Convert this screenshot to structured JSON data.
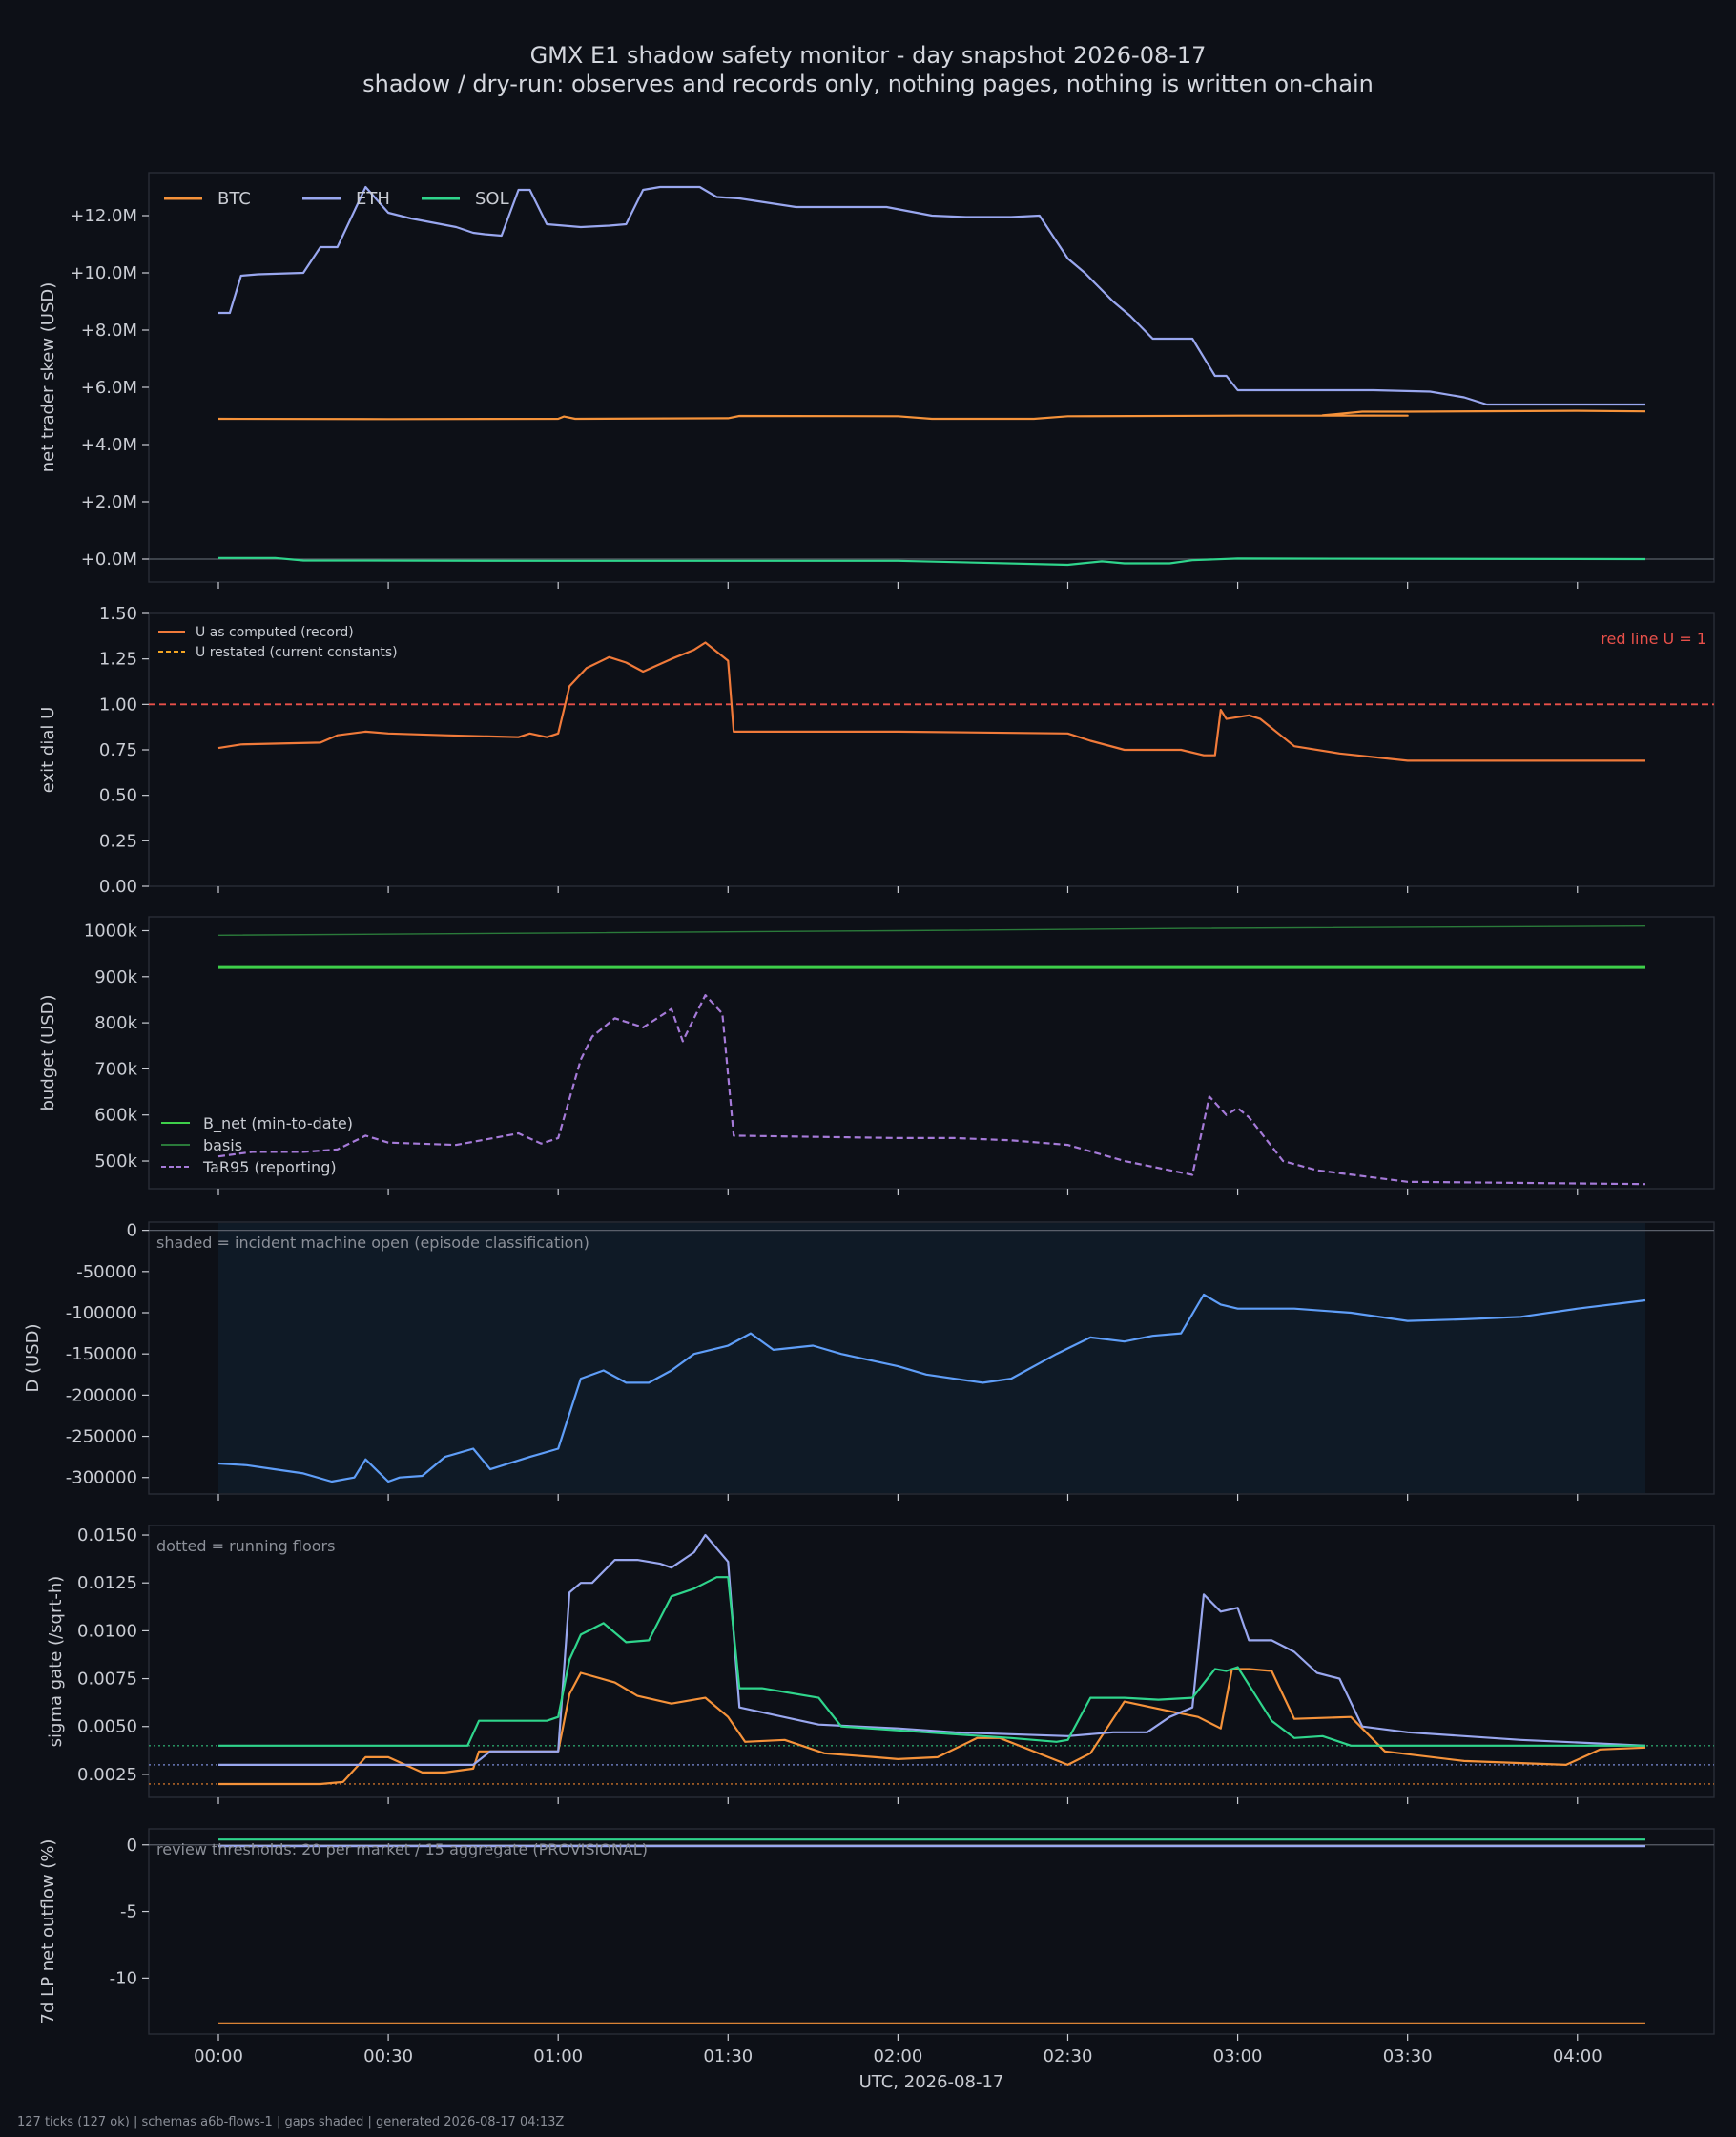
{
  "header": {
    "title": "GMX E1 shadow safety monitor - day snapshot 2026-08-17",
    "subtitle": "shadow / dry-run: observes and records only, nothing pages, nothing is written on-chain"
  },
  "footer": "127 ticks (127 ok) | schemas a6b-flows-1 | gaps shaded | generated 2026-08-17 04:13Z",
  "colors": {
    "background": "#0d1017",
    "btc": "#f5923a",
    "eth": "#99a7ef",
    "sol": "#2fd58c",
    "u_record": "#f07a3a",
    "red_line": "#e8504a",
    "b_net": "#3ecf4a",
    "basis": "#2a7a3a",
    "tar95": "#a57ad8",
    "d_line": "#5f9ef8",
    "shade": "#0f1a26"
  },
  "chart_data": [
    {
      "type": "line",
      "ylabel": "net trader skew (USD)",
      "ylim": [
        -800000,
        13500000
      ],
      "yticks": [
        "+0.0M",
        "+2.0M",
        "+4.0M",
        "+6.0M",
        "+8.0M",
        "+10.0M",
        "+12.0M"
      ],
      "legend": {
        "placement": "top-left",
        "orientation": "horizontal"
      },
      "series": [
        {
          "name": "BTC",
          "color": "#f5923a",
          "x": [
            "00:00",
            "00:30",
            "01:00",
            "01:01",
            "01:03",
            "01:30",
            "01:32",
            "02:00",
            "02:06",
            "02:24",
            "02:30",
            "03:00",
            "03:30",
            "03:15",
            "03:22",
            "03:30",
            "04:00",
            "04:12"
          ],
          "values": [
            4900000,
            4890000,
            4900000,
            4980000,
            4900000,
            4920000,
            5000000,
            4990000,
            4900000,
            4900000,
            4990000,
            5010000,
            5010000,
            5020000,
            5150000,
            5150000,
            5180000,
            5160000
          ]
        },
        {
          "name": "ETH",
          "color": "#99a7ef",
          "x": [
            "00:00",
            "00:02",
            "00:04",
            "00:07",
            "00:15",
            "00:18",
            "00:21",
            "00:26",
            "00:30",
            "00:34",
            "00:42",
            "00:45",
            "00:47",
            "00:50",
            "00:53",
            "00:55",
            "00:58",
            "01:04",
            "01:09",
            "01:12",
            "01:15",
            "01:18",
            "01:25",
            "01:28",
            "01:32",
            "01:42",
            "01:58",
            "02:06",
            "02:12",
            "02:20",
            "02:25",
            "02:30",
            "02:33",
            "02:38",
            "02:41",
            "02:45",
            "02:52",
            "02:56",
            "02:58",
            "03:00",
            "03:10",
            "03:24",
            "03:34",
            "03:40",
            "03:44",
            "04:00",
            "04:12"
          ],
          "values": [
            8600000,
            8600000,
            9900000,
            9950000,
            10000000,
            10900000,
            10900000,
            13000000,
            12100000,
            11900000,
            11600000,
            11400000,
            11350000,
            11300000,
            12900000,
            12900000,
            11700000,
            11600000,
            11650000,
            11700000,
            12900000,
            13000000,
            13000000,
            12650000,
            12600000,
            12300000,
            12300000,
            12000000,
            11950000,
            11950000,
            12000000,
            10500000,
            10000000,
            9000000,
            8500000,
            7700000,
            7700000,
            6400000,
            6400000,
            5900000,
            5900000,
            5900000,
            5850000,
            5650000,
            5400000,
            5400000,
            5400000
          ]
        },
        {
          "name": "SOL",
          "color": "#2fd58c",
          "x": [
            "00:00",
            "00:10",
            "00:15",
            "01:00",
            "02:00",
            "02:30",
            "02:36",
            "02:40",
            "02:48",
            "02:52",
            "03:00",
            "04:12"
          ],
          "values": [
            40000,
            40000,
            -50000,
            -60000,
            -60000,
            -200000,
            -80000,
            -150000,
            -150000,
            -40000,
            20000,
            0
          ]
        }
      ]
    },
    {
      "type": "line",
      "ylabel": "exit dial U",
      "ylim": [
        0,
        1.5
      ],
      "yticks": [
        "0.00",
        "0.25",
        "0.50",
        "0.75",
        "1.00",
        "1.25",
        "1.50"
      ],
      "legend": {
        "placement": "top-left",
        "entries": [
          "U as computed (record)",
          "U restated (current constants)"
        ]
      },
      "annotation": "red line U = 1",
      "reference_line": 1.0,
      "series": [
        {
          "name": "U as computed (record)",
          "color": "#f07a3a",
          "x": [
            "00:00",
            "00:04",
            "00:18",
            "00:21",
            "00:26",
            "00:30",
            "00:40",
            "00:53",
            "00:55",
            "00:58",
            "01:00",
            "01:02",
            "01:05",
            "01:09",
            "01:12",
            "01:15",
            "01:20",
            "01:24",
            "01:26",
            "01:30",
            "01:31",
            "01:40",
            "02:00",
            "02:30",
            "02:34",
            "02:40",
            "02:50",
            "02:54",
            "02:56",
            "02:57",
            "02:58",
            "03:02",
            "03:04",
            "03:10",
            "03:18",
            "03:30",
            "04:12"
          ],
          "values": [
            0.76,
            0.78,
            0.79,
            0.83,
            0.85,
            0.84,
            0.83,
            0.82,
            0.84,
            0.82,
            0.84,
            1.1,
            1.2,
            1.26,
            1.23,
            1.18,
            1.25,
            1.3,
            1.34,
            1.24,
            0.85,
            0.85,
            0.85,
            0.84,
            0.8,
            0.75,
            0.75,
            0.72,
            0.72,
            0.97,
            0.92,
            0.94,
            0.92,
            0.77,
            0.73,
            0.69,
            0.69
          ]
        },
        {
          "name": "U restated (current constants)",
          "color": "#f5a623",
          "dashed": true,
          "x": [],
          "values": []
        }
      ]
    },
    {
      "type": "line",
      "ylabel": "budget (USD)",
      "ylim": [
        440000,
        1030000
      ],
      "yticks": [
        "500k",
        "600k",
        "700k",
        "800k",
        "900k",
        "1000k"
      ],
      "legend": {
        "placement": "bottom-left"
      },
      "series": [
        {
          "name": "B_net (min-to-date)",
          "color": "#3ecf4a",
          "x": [
            "00:00",
            "04:12"
          ],
          "values": [
            920000,
            920000
          ]
        },
        {
          "name": "basis",
          "color": "#2a7a3a",
          "x": [
            "00:00",
            "01:00",
            "02:00",
            "02:52",
            "04:12"
          ],
          "values": [
            990000,
            995000,
            1000000,
            1005000,
            1010000
          ]
        },
        {
          "name": "TaR95 (reporting)",
          "color": "#a57ad8",
          "dashed": true,
          "x": [
            "00:00",
            "00:06",
            "00:15",
            "00:21",
            "00:26",
            "00:30",
            "00:42",
            "00:53",
            "00:57",
            "01:00",
            "01:04",
            "01:06",
            "01:10",
            "01:15",
            "01:20",
            "01:22",
            "01:26",
            "01:29",
            "01:31",
            "02:00",
            "02:10",
            "02:20",
            "02:30",
            "02:40",
            "02:52",
            "02:55",
            "02:58",
            "03:00",
            "03:02",
            "03:08",
            "03:14",
            "03:30",
            "04:12"
          ],
          "values": [
            510000,
            520000,
            520000,
            525000,
            555000,
            540000,
            535000,
            560000,
            538000,
            550000,
            720000,
            770000,
            810000,
            790000,
            830000,
            760000,
            860000,
            820000,
            555000,
            550000,
            550000,
            545000,
            535000,
            500000,
            470000,
            640000,
            600000,
            615000,
            595000,
            500000,
            480000,
            455000,
            450000
          ]
        }
      ]
    },
    {
      "type": "line",
      "ylabel": "D (USD)",
      "ylim": [
        -320000,
        10000
      ],
      "yticks": [
        "-300000",
        "-250000",
        "-200000",
        "-150000",
        "-100000",
        "-50000",
        "0"
      ],
      "annotation": "shaded = incident machine open (episode classification)",
      "shaded_span": [
        "00:00",
        "04:12"
      ],
      "series": [
        {
          "name": "D",
          "color": "#5f9ef8",
          "x": [
            "00:00",
            "00:05",
            "00:10",
            "00:15",
            "00:20",
            "00:24",
            "00:26",
            "00:30",
            "00:32",
            "00:36",
            "00:40",
            "00:45",
            "00:48",
            "00:55",
            "01:00",
            "01:04",
            "01:08",
            "01:12",
            "01:16",
            "01:20",
            "01:24",
            "01:30",
            "01:34",
            "01:38",
            "01:45",
            "01:50",
            "02:00",
            "02:05",
            "02:15",
            "02:20",
            "02:28",
            "02:34",
            "02:40",
            "02:45",
            "02:50",
            "02:54",
            "02:57",
            "03:00",
            "03:10",
            "03:20",
            "03:30",
            "03:40",
            "03:50",
            "04:00",
            "04:12"
          ],
          "values": [
            -283000,
            -285000,
            -290000,
            -295000,
            -305000,
            -300000,
            -278000,
            -305000,
            -300000,
            -298000,
            -275000,
            -265000,
            -290000,
            -275000,
            -265000,
            -180000,
            -170000,
            -185000,
            -185000,
            -170000,
            -150000,
            -140000,
            -125000,
            -145000,
            -140000,
            -150000,
            -165000,
            -175000,
            -185000,
            -180000,
            -150000,
            -130000,
            -135000,
            -128000,
            -125000,
            -78000,
            -90000,
            -95000,
            -95000,
            -100000,
            -110000,
            -108000,
            -105000,
            -95000,
            -85000
          ]
        }
      ]
    },
    {
      "type": "line",
      "ylabel": "sigma gate (/sqrt-h)",
      "ylim": [
        0.0013,
        0.0155
      ],
      "yticks": [
        "0.0025",
        "0.0050",
        "0.0075",
        "0.0100",
        "0.0125",
        "0.0150"
      ],
      "annotation": "dotted = running floors",
      "floors": {
        "btc": 0.002,
        "eth": 0.003,
        "sol": 0.004
      },
      "series": [
        {
          "name": "BTC",
          "color": "#f5923a",
          "x": [
            "00:00",
            "00:18",
            "00:22",
            "00:26",
            "00:30",
            "00:36",
            "00:40",
            "00:45",
            "00:46",
            "00:55",
            "01:00",
            "01:02",
            "01:04",
            "01:10",
            "01:14",
            "01:20",
            "01:26",
            "01:30",
            "01:33",
            "01:40",
            "01:47",
            "01:56",
            "02:00",
            "02:07",
            "02:14",
            "02:18",
            "02:30",
            "02:34",
            "02:40",
            "02:48",
            "02:53",
            "02:57",
            "02:59",
            "03:02",
            "03:06",
            "03:10",
            "03:20",
            "03:26",
            "03:40",
            "03:58",
            "04:04",
            "04:12"
          ],
          "values": [
            0.002,
            0.002,
            0.0021,
            0.0034,
            0.0034,
            0.0026,
            0.0026,
            0.0028,
            0.0037,
            0.0037,
            0.0037,
            0.0067,
            0.0078,
            0.0073,
            0.0066,
            0.0062,
            0.0065,
            0.0055,
            0.0042,
            0.0043,
            0.0036,
            0.0034,
            0.0033,
            0.0034,
            0.0044,
            0.0044,
            0.003,
            0.0036,
            0.0063,
            0.0058,
            0.0055,
            0.0049,
            0.008,
            0.008,
            0.0079,
            0.0054,
            0.0055,
            0.0037,
            0.0032,
            0.003,
            0.0038,
            0.0039
          ]
        },
        {
          "name": "ETH",
          "color": "#99a7ef",
          "x": [
            "00:00",
            "00:45",
            "00:48",
            "01:00",
            "01:02",
            "01:04",
            "01:06",
            "01:10",
            "01:14",
            "01:18",
            "01:20",
            "01:24",
            "01:26",
            "01:30",
            "01:32",
            "01:46",
            "02:00",
            "02:10",
            "02:20",
            "02:30",
            "02:38",
            "02:44",
            "02:48",
            "02:52",
            "02:54",
            "02:57",
            "03:00",
            "03:02",
            "03:06",
            "03:10",
            "03:14",
            "03:18",
            "03:22",
            "03:30",
            "03:50",
            "04:12"
          ],
          "values": [
            0.003,
            0.003,
            0.0037,
            0.0037,
            0.012,
            0.0125,
            0.0125,
            0.0137,
            0.0137,
            0.0135,
            0.0133,
            0.0141,
            0.015,
            0.0136,
            0.006,
            0.0051,
            0.0049,
            0.0047,
            0.0046,
            0.0045,
            0.0047,
            0.0047,
            0.0055,
            0.006,
            0.0119,
            0.011,
            0.0112,
            0.0095,
            0.0095,
            0.0089,
            0.0078,
            0.0075,
            0.005,
            0.0047,
            0.0043,
            0.004
          ]
        },
        {
          "name": "SOL",
          "color": "#2fd58c",
          "x": [
            "00:00",
            "00:44",
            "00:46",
            "00:58",
            "01:00",
            "01:02",
            "01:04",
            "01:08",
            "01:12",
            "01:16",
            "01:20",
            "01:24",
            "01:28",
            "01:30",
            "01:32",
            "01:36",
            "01:46",
            "01:50",
            "02:00",
            "02:20",
            "02:28",
            "02:30",
            "02:34",
            "02:40",
            "02:46",
            "02:52",
            "02:56",
            "02:58",
            "03:00",
            "03:06",
            "03:10",
            "03:15",
            "03:20",
            "03:30",
            "04:12"
          ],
          "values": [
            0.004,
            0.004,
            0.0053,
            0.0053,
            0.0055,
            0.0085,
            0.0098,
            0.0104,
            0.0094,
            0.0095,
            0.0118,
            0.0122,
            0.0128,
            0.0128,
            0.007,
            0.007,
            0.0065,
            0.005,
            0.0048,
            0.0044,
            0.0042,
            0.0043,
            0.0065,
            0.0065,
            0.0064,
            0.0065,
            0.008,
            0.0079,
            0.0081,
            0.0053,
            0.0044,
            0.0045,
            0.004,
            0.004,
            0.004
          ]
        }
      ]
    },
    {
      "type": "line",
      "ylabel": "7d LP net outflow (%)",
      "xlabel": "UTC, 2026-08-17",
      "ylim": [
        -14.2,
        1.2
      ],
      "yticks": [
        "-10",
        "-5",
        "0"
      ],
      "xticks": [
        "00:00",
        "00:30",
        "01:00",
        "01:30",
        "02:00",
        "02:30",
        "03:00",
        "03:30",
        "04:00"
      ],
      "annotation": "review thresholds: 20 per market / 15 aggregate (PROVISIONAL)",
      "series": [
        {
          "name": "BTC",
          "color": "#f5923a",
          "x": [
            "00:00",
            "04:12"
          ],
          "values": [
            -13.4,
            -13.4
          ]
        },
        {
          "name": "ETH",
          "color": "#99a7ef",
          "x": [
            "00:00",
            "04:12"
          ],
          "values": [
            -0.1,
            -0.1
          ]
        },
        {
          "name": "SOL",
          "color": "#2fd58c",
          "x": [
            "00:00",
            "04:12"
          ],
          "values": [
            0.4,
            0.4
          ]
        }
      ]
    }
  ]
}
